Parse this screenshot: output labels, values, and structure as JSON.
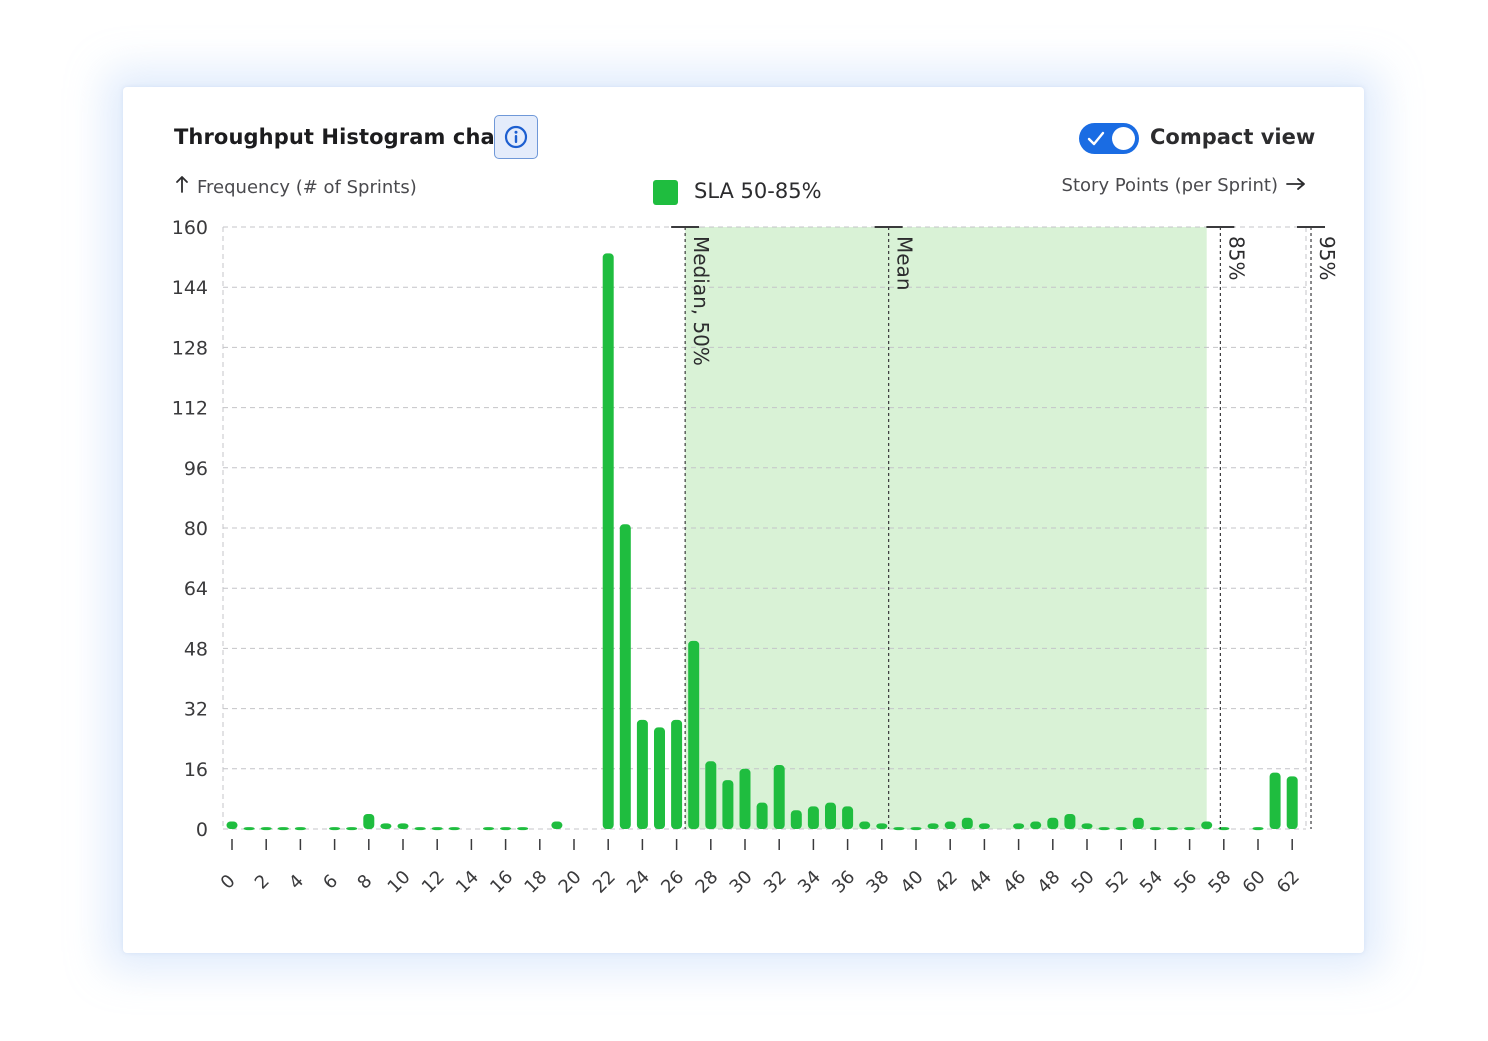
{
  "header": {
    "title": "Throughput Histogram chart",
    "info_icon": "info-circle-icon",
    "toggle": {
      "label": "Compact view",
      "checked": true,
      "icon": "check-icon",
      "color": "#1a6ce3"
    }
  },
  "chart_data": {
    "type": "bar",
    "xlabel": "Story Points (per Sprint)",
    "ylabel": "Frequency (# of Sprints)",
    "ylim": [
      0,
      160
    ],
    "yticks": [
      0,
      16,
      32,
      48,
      64,
      80,
      96,
      112,
      128,
      144,
      160
    ],
    "xticks": [
      0,
      2,
      4,
      6,
      8,
      10,
      12,
      14,
      16,
      18,
      20,
      22,
      24,
      26,
      28,
      30,
      32,
      34,
      36,
      38,
      40,
      42,
      44,
      46,
      48,
      50,
      52,
      54,
      56,
      58,
      60,
      62
    ],
    "xlim": [
      0,
      63
    ],
    "grid": true,
    "legend": {
      "position": "top-center",
      "entries": [
        {
          "label": "SLA 50-85%",
          "color": "#1fbd3f"
        }
      ]
    },
    "bar_color": "#1fbd3f",
    "sla_band": {
      "from": 26.5,
      "to": 57,
      "color": "#d9f2d6"
    },
    "reference_lines": [
      {
        "label": "Median, 50%",
        "x": 26.5
      },
      {
        "label": "Mean",
        "x": 38.4
      },
      {
        "label": "85%",
        "x": 57.8
      },
      {
        "label": "95%",
        "x": 63.1
      }
    ],
    "x": [
      0,
      1,
      2,
      3,
      4,
      5,
      6,
      7,
      8,
      9,
      10,
      11,
      12,
      13,
      14,
      15,
      16,
      17,
      18,
      19,
      20,
      21,
      22,
      23,
      24,
      25,
      26,
      27,
      28,
      29,
      30,
      31,
      32,
      33,
      34,
      35,
      36,
      37,
      38,
      39,
      40,
      41,
      42,
      43,
      44,
      45,
      46,
      47,
      48,
      49,
      50,
      51,
      52,
      53,
      54,
      55,
      56,
      57,
      58,
      59,
      60,
      61,
      62
    ],
    "values": [
      2,
      0.5,
      0.5,
      0.5,
      0.5,
      0,
      0.5,
      0.5,
      4,
      1.5,
      1.5,
      0.5,
      0.5,
      0.5,
      0,
      0.5,
      0.5,
      0.5,
      0,
      2,
      0,
      0,
      153,
      81,
      29,
      27,
      29,
      50,
      18,
      13,
      16,
      7,
      17,
      5,
      6,
      7,
      6,
      2,
      1.5,
      0.5,
      0.5,
      1.5,
      2,
      3,
      1.5,
      0,
      1.5,
      2,
      3,
      4,
      1.5,
      0.5,
      0.5,
      3,
      0.5,
      0.5,
      0.5,
      2,
      0.5,
      0,
      0.5,
      15,
      14
    ]
  }
}
